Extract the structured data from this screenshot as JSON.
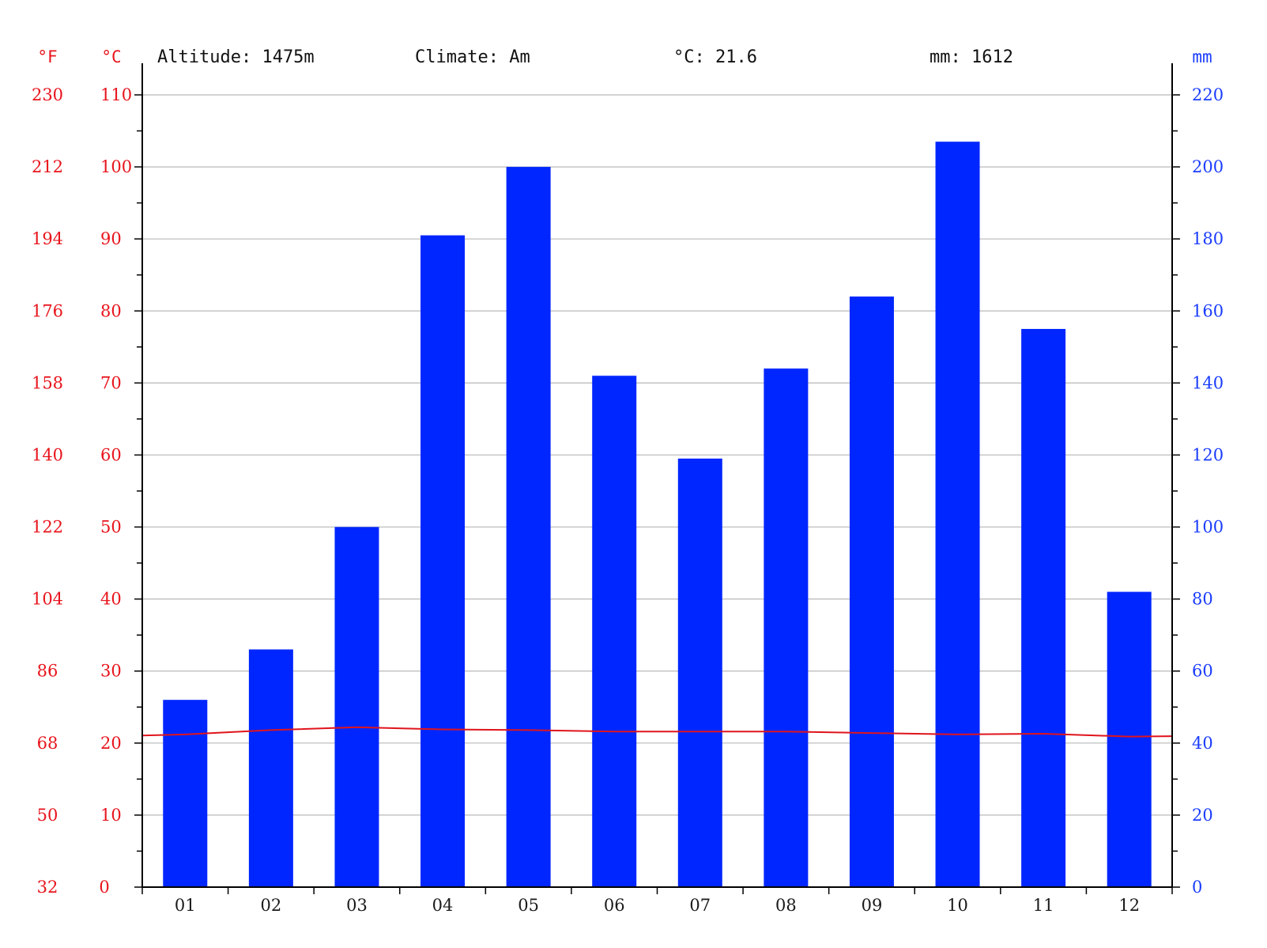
{
  "header": {
    "altitude": "Altitude: 1475m",
    "climate": "Climate: Am",
    "temp": "°C: 21.6",
    "precip": "mm: 1612"
  },
  "axis_units": {
    "fahrenheit": "°F",
    "celsius": "°C",
    "mm": "mm"
  },
  "colors": {
    "bars": "#0026ff",
    "temperature_line": "#e0141c",
    "left_ticks": "#e8141c",
    "right_ticks": "#1a3cff",
    "grid": "#b8b8b8",
    "axis": "#000000"
  },
  "chart_data": {
    "type": "bar",
    "categories": [
      "01",
      "02",
      "03",
      "04",
      "05",
      "06",
      "07",
      "08",
      "09",
      "10",
      "11",
      "12"
    ],
    "series": [
      {
        "type": "bar",
        "axis": "mm",
        "values": [
          52,
          66,
          100,
          181,
          200,
          142,
          119,
          144,
          164,
          207,
          155,
          82
        ]
      },
      {
        "type": "line",
        "axis": "celsius",
        "values": [
          21.2,
          21.8,
          22.2,
          21.9,
          21.8,
          21.6,
          21.6,
          21.6,
          21.4,
          21.2,
          21.3,
          20.9
        ]
      }
    ],
    "celsius_axis": {
      "range": [
        0,
        110
      ],
      "ticks": [
        0,
        10,
        20,
        30,
        40,
        50,
        60,
        70,
        80,
        90,
        100,
        110
      ]
    },
    "fahrenheit_axis": {
      "ticks": [
        32,
        50,
        68,
        86,
        104,
        122,
        140,
        158,
        176,
        194,
        212,
        230
      ]
    },
    "mm_axis": {
      "range": [
        0,
        220
      ],
      "ticks": [
        0,
        20,
        40,
        60,
        80,
        100,
        120,
        140,
        160,
        180,
        200,
        220
      ]
    },
    "grid": true
  }
}
